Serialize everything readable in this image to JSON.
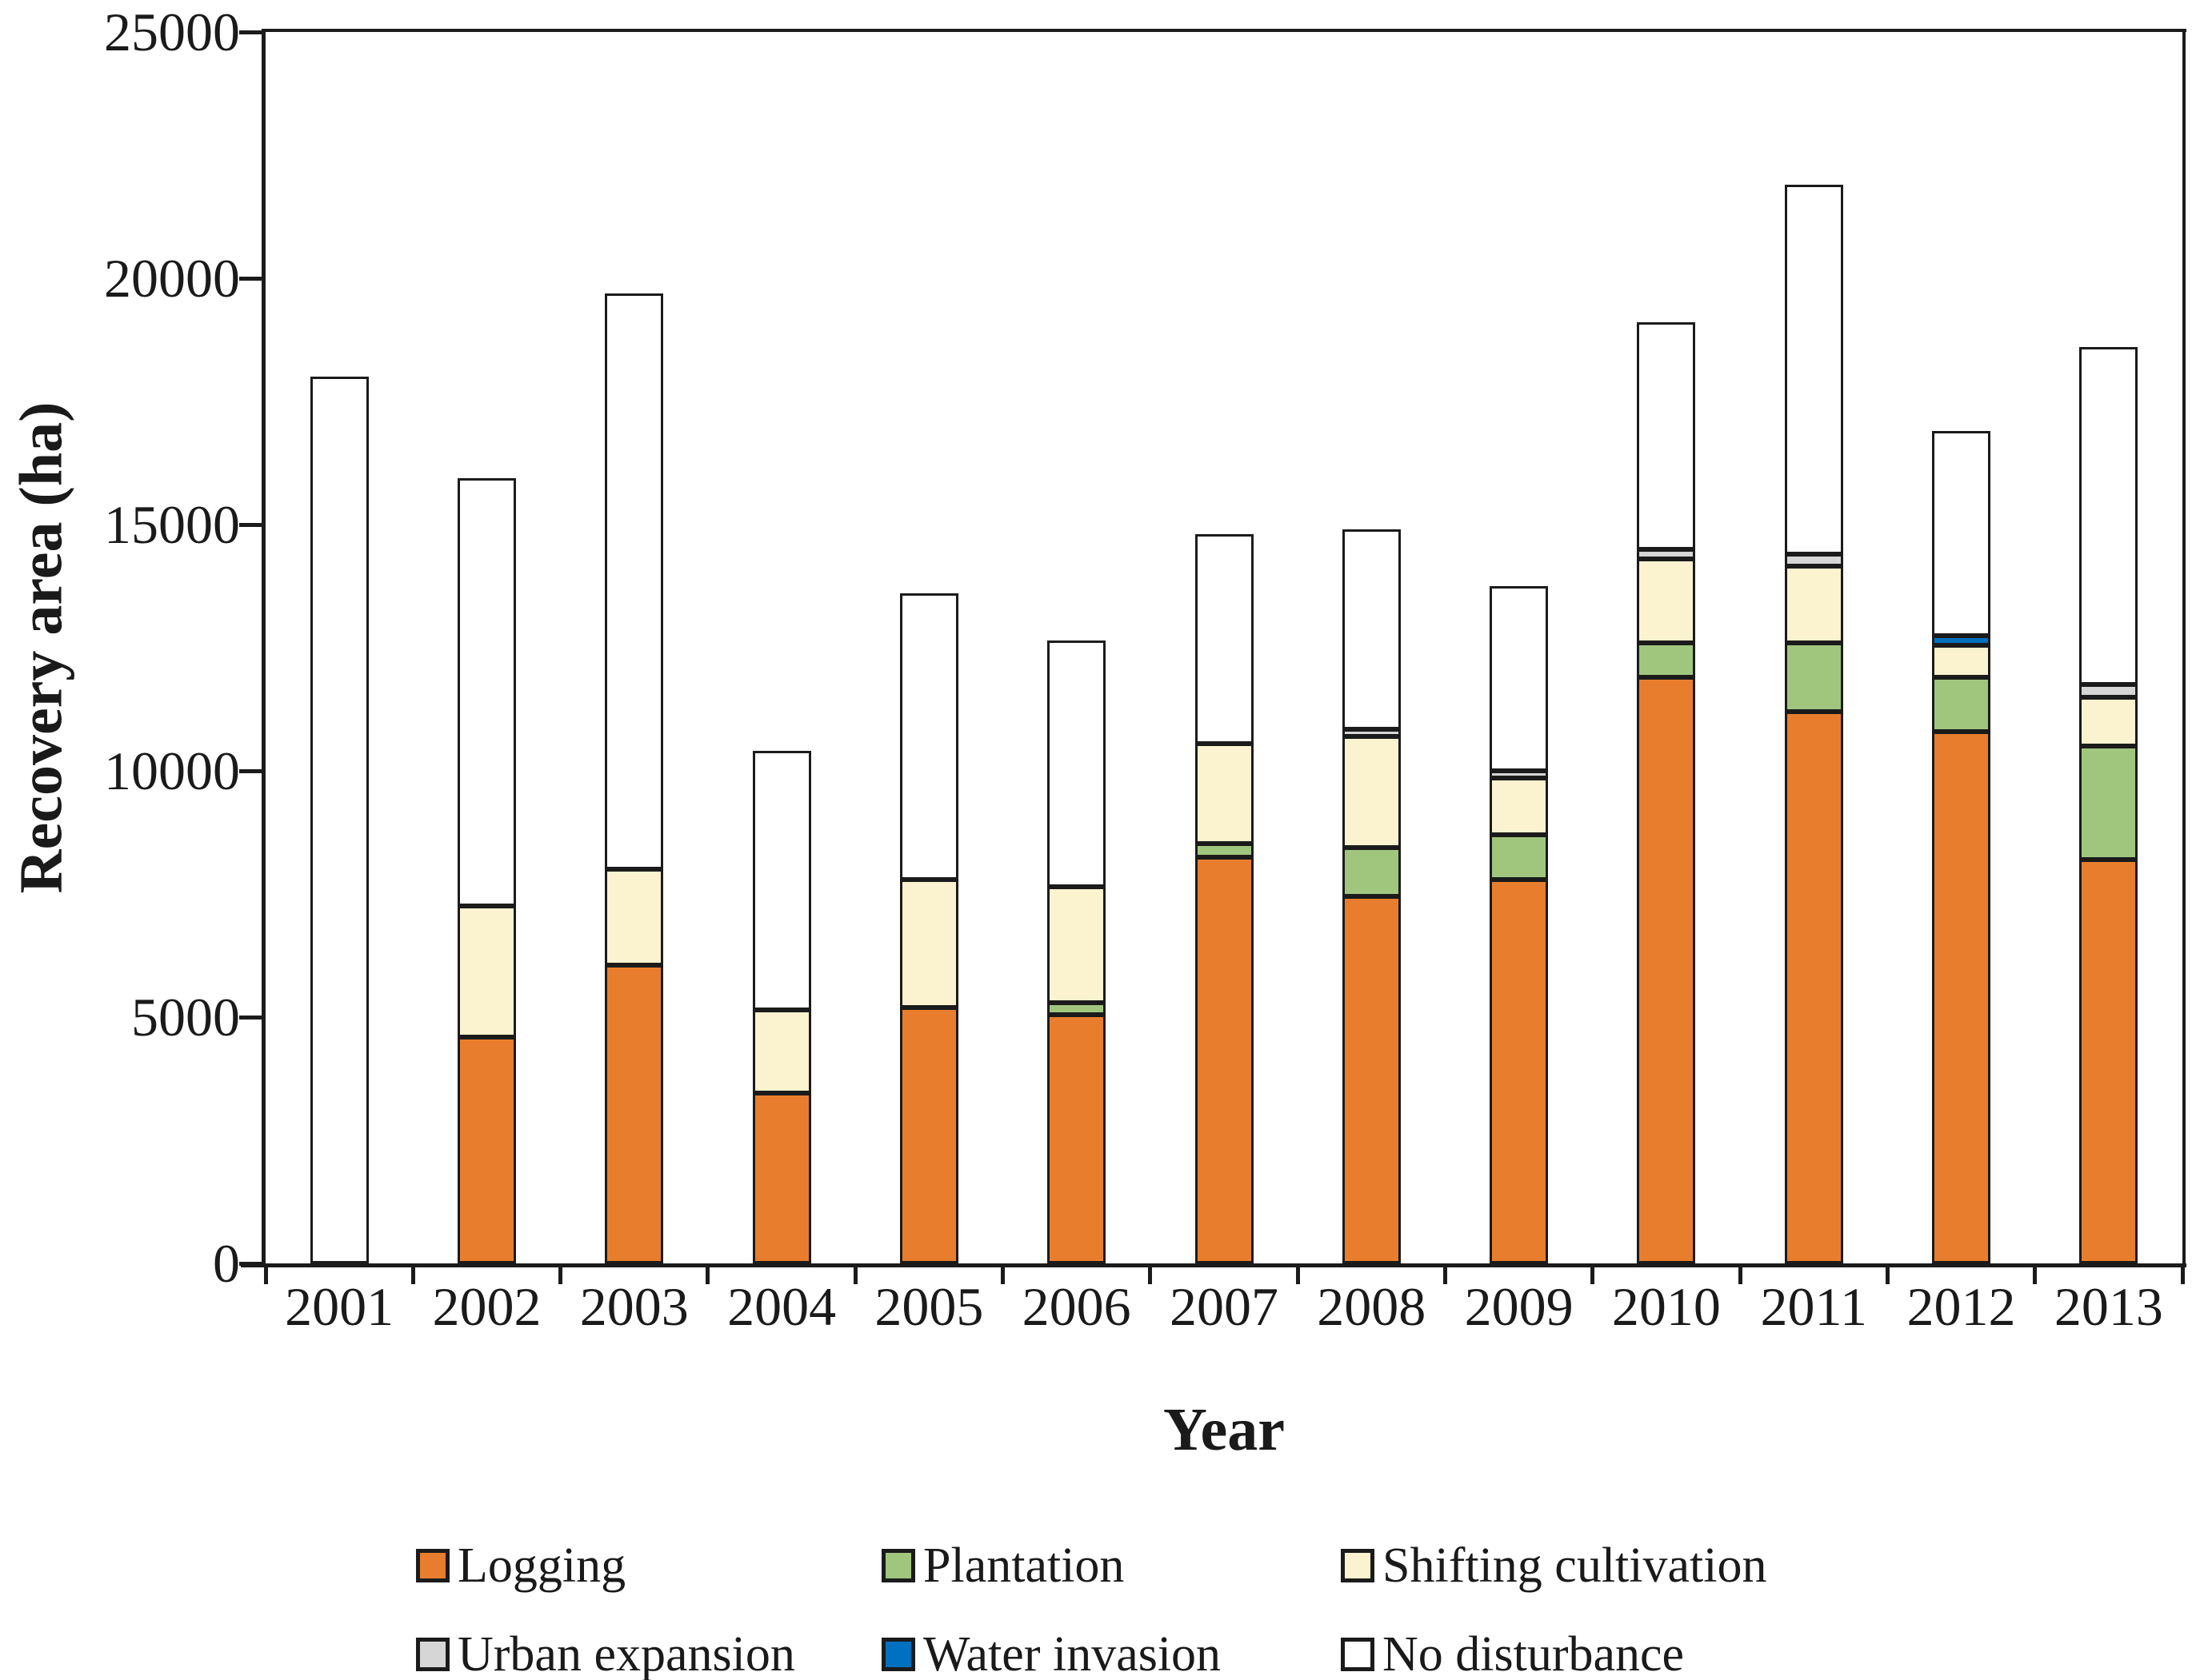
{
  "chart_data": {
    "type": "bar",
    "stacked": true,
    "title": "",
    "xlabel": "Year",
    "ylabel": "Recovery area (ha)",
    "ylim": [
      0,
      25000
    ],
    "yticks": [
      0,
      5000,
      10000,
      15000,
      20000,
      25000
    ],
    "ytick_labels": [
      "0",
      "5000",
      "10000",
      "15000",
      "20000",
      "25000"
    ],
    "grid": false,
    "legend_position": "bottom",
    "bar_outline_color": "#1b1b1b",
    "categories": [
      "2001",
      "2002",
      "2003",
      "2004",
      "2005",
      "2006",
      "2007",
      "2008",
      "2009",
      "2010",
      "2011",
      "2012",
      "2013"
    ],
    "series": [
      {
        "name": "Logging",
        "color": "#E87E2D",
        "values": [
          0,
          4600,
          6050,
          3450,
          5200,
          5050,
          8250,
          7450,
          7800,
          11900,
          11200,
          10800,
          8200
        ]
      },
      {
        "name": "Plantation",
        "color": "#A0C67E",
        "values": [
          0,
          0,
          0,
          0,
          0,
          250,
          270,
          1000,
          900,
          700,
          1400,
          1100,
          2300
        ]
      },
      {
        "name": "Shifting cultivation",
        "color": "#FBF2CF",
        "values": [
          0,
          2650,
          1950,
          1700,
          2600,
          2350,
          2030,
          2250,
          1150,
          1700,
          1550,
          650,
          1000
        ]
      },
      {
        "name": "Urban expansion",
        "color": "#D6D6D6",
        "values": [
          0,
          0,
          0,
          0,
          0,
          0,
          0,
          150,
          150,
          200,
          250,
          0,
          250
        ]
      },
      {
        "name": "Water invasion",
        "color": "#0070C0",
        "values": [
          0,
          0,
          0,
          0,
          0,
          0,
          0,
          0,
          0,
          0,
          0,
          200,
          0
        ]
      },
      {
        "name": "No disturbance",
        "color": "#FFFFFF",
        "values": [
          18000,
          8700,
          11700,
          5250,
          5800,
          5000,
          4250,
          4050,
          3750,
          4600,
          7500,
          4150,
          6850
        ]
      }
    ],
    "totals": [
      18000,
      15950,
      19700,
      10400,
      13600,
      12650,
      14800,
      14900,
      13750,
      19100,
      21900,
      16900,
      18600
    ],
    "legend_rows": [
      [
        "Logging",
        "Plantation",
        "Shifting cultivation"
      ],
      [
        "Urban expansion",
        "Water invasion",
        "No disturbance"
      ]
    ]
  }
}
